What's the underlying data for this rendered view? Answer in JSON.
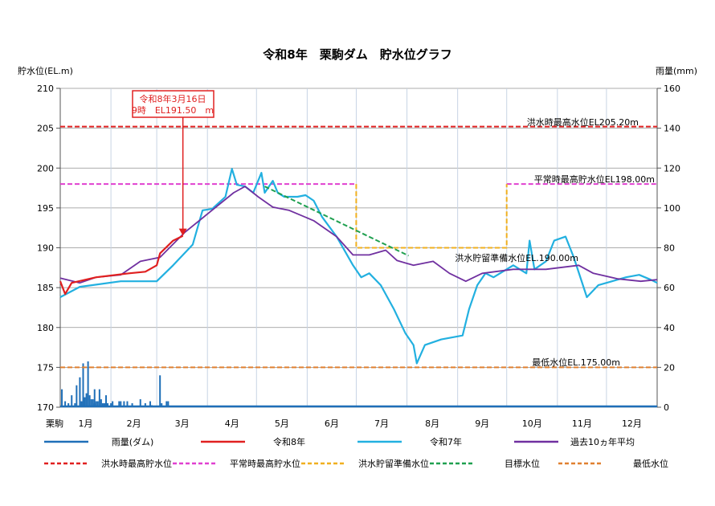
{
  "chart_data": {
    "type": "line",
    "title": "令和8年　栗駒ダム　貯水位グラフ",
    "ylabel": "貯水位(EL.m)",
    "y2label": "雨量(mm)",
    "xlabel_prefix": "栗駒",
    "ylim": [
      170,
      210
    ],
    "y2lim": [
      0,
      160
    ],
    "yticks": [
      170,
      175,
      180,
      185,
      190,
      195,
      200,
      205,
      210
    ],
    "y2ticks": [
      0,
      20,
      40,
      60,
      80,
      100,
      120,
      140,
      160
    ],
    "months": [
      "1月",
      "2月",
      "3月",
      "4月",
      "5月",
      "6月",
      "7月",
      "8月",
      "9月",
      "10月",
      "11月",
      "12月"
    ],
    "x_unit": "day of year",
    "grid": true,
    "colors": {
      "rain": "#1f6fb8",
      "r8": "#e02020",
      "r7": "#22b0e0",
      "avg": "#7030a0",
      "flood": "#e02020",
      "normal": "#e040d0",
      "prep": "#f0b020",
      "target": "#20a050",
      "min": "#e08030"
    },
    "series": [
      {
        "name": "令和8年",
        "key": "r8",
        "points": [
          [
            0,
            185.8
          ],
          [
            3,
            184.2
          ],
          [
            7,
            185.6
          ],
          [
            22,
            186.3
          ],
          [
            42,
            186.8
          ],
          [
            52,
            187
          ],
          [
            59,
            187.8
          ],
          [
            61,
            189.3
          ],
          [
            69,
            190.9
          ],
          [
            75,
            191.5
          ]
        ]
      },
      {
        "name": "令和7年",
        "key": "r7",
        "points": [
          [
            0,
            183.8
          ],
          [
            12,
            185.1
          ],
          [
            37,
            185.8
          ],
          [
            59,
            185.8
          ],
          [
            69,
            187.8
          ],
          [
            81,
            190.4
          ],
          [
            87,
            194.7
          ],
          [
            93,
            194.9
          ],
          [
            101,
            196.4
          ],
          [
            105,
            199.9
          ],
          [
            108,
            197.9
          ],
          [
            113,
            197.7
          ],
          [
            118,
            196.9
          ],
          [
            123,
            199.4
          ],
          [
            125,
            196.9
          ],
          [
            130,
            198.4
          ],
          [
            133,
            196.9
          ],
          [
            137,
            196.4
          ],
          [
            145,
            196.4
          ],
          [
            150,
            196.6
          ],
          [
            155,
            195.9
          ],
          [
            160,
            193.9
          ],
          [
            169,
            191.4
          ],
          [
            179,
            187.8
          ],
          [
            184,
            186.3
          ],
          [
            189,
            186.8
          ],
          [
            196,
            185.3
          ],
          [
            204,
            182.3
          ],
          [
            211,
            179.3
          ],
          [
            216,
            177.8
          ],
          [
            218,
            175.5
          ],
          [
            223,
            177.8
          ],
          [
            233,
            178.5
          ],
          [
            246,
            179
          ],
          [
            250,
            182.3
          ],
          [
            255,
            185.3
          ],
          [
            260,
            186.8
          ],
          [
            265,
            186.3
          ],
          [
            277,
            187.8
          ],
          [
            285,
            186.8
          ],
          [
            287,
            190.9
          ],
          [
            290,
            187.3
          ],
          [
            297,
            188.3
          ],
          [
            302,
            190.9
          ],
          [
            309,
            191.4
          ],
          [
            314,
            188.8
          ],
          [
            322,
            183.8
          ],
          [
            329,
            185.3
          ],
          [
            346,
            186.3
          ],
          [
            354,
            186.6
          ],
          [
            361,
            186
          ],
          [
            365,
            185.6
          ]
        ]
      },
      {
        "name": "過去10ヵ年平均",
        "key": "avg",
        "points": [
          [
            0,
            186.2
          ],
          [
            12,
            185.6
          ],
          [
            22,
            186.3
          ],
          [
            37,
            186.6
          ],
          [
            49,
            188.3
          ],
          [
            61,
            188.8
          ],
          [
            76,
            191.9
          ],
          [
            91,
            194.4
          ],
          [
            106,
            196.9
          ],
          [
            113,
            197.7
          ],
          [
            121,
            196.4
          ],
          [
            130,
            195.1
          ],
          [
            140,
            194.7
          ],
          [
            155,
            193.4
          ],
          [
            169,
            191.4
          ],
          [
            179,
            189.1
          ],
          [
            189,
            189.1
          ],
          [
            199,
            189.7
          ],
          [
            206,
            188.4
          ],
          [
            216,
            187.8
          ],
          [
            228,
            188.3
          ],
          [
            238,
            186.8
          ],
          [
            248,
            185.8
          ],
          [
            258,
            186.8
          ],
          [
            277,
            187.3
          ],
          [
            297,
            187.3
          ],
          [
            317,
            187.8
          ],
          [
            326,
            186.8
          ],
          [
            341,
            186.1
          ],
          [
            355,
            185.8
          ],
          [
            365,
            186
          ]
        ]
      },
      {
        "name": "目標水位",
        "key": "target",
        "dashed": true,
        "points": [
          [
            125,
            197.7
          ],
          [
            213,
            189
          ]
        ]
      },
      {
        "name": "洪水時最高貯水位",
        "key": "flood",
        "dashed": true,
        "points": [
          [
            0,
            205.2
          ],
          [
            365,
            205.2
          ]
        ]
      },
      {
        "name": "平常時最高貯水位",
        "key": "normal",
        "dashed": true,
        "segments": [
          [
            [
              0,
              198
            ],
            [
              181,
              198
            ]
          ],
          [
            [
              273,
              198
            ],
            [
              365,
              198
            ]
          ]
        ]
      },
      {
        "name": "洪水貯留準備水位",
        "key": "prep",
        "dashed": true,
        "points": [
          [
            181,
            198
          ],
          [
            181,
            190
          ],
          [
            273,
            190
          ],
          [
            273,
            198
          ]
        ]
      },
      {
        "name": "最低水位",
        "key": "min",
        "dashed": true,
        "points": [
          [
            0,
            175
          ],
          [
            365,
            175
          ]
        ]
      }
    ],
    "rainfall": {
      "name": "雨量(ダム)",
      "points": [
        [
          1,
          9
        ],
        [
          3,
          3
        ],
        [
          5,
          2
        ],
        [
          7,
          6
        ],
        [
          9,
          2
        ],
        [
          10,
          11
        ],
        [
          12,
          15
        ],
        [
          13,
          3
        ],
        [
          14,
          22
        ],
        [
          15,
          5
        ],
        [
          16,
          7
        ],
        [
          17,
          23
        ],
        [
          18,
          6
        ],
        [
          19,
          4
        ],
        [
          20,
          4
        ],
        [
          21,
          2
        ],
        [
          21,
          9
        ],
        [
          22,
          3
        ],
        [
          23,
          3
        ],
        [
          24,
          9
        ],
        [
          25,
          4
        ],
        [
          26,
          2
        ],
        [
          27,
          2
        ],
        [
          28,
          6
        ],
        [
          29,
          2
        ],
        [
          31,
          2
        ],
        [
          32,
          3
        ],
        [
          36,
          3
        ],
        [
          37,
          3
        ],
        [
          39,
          3
        ],
        [
          41,
          3
        ],
        [
          44,
          2
        ],
        [
          49,
          4
        ],
        [
          52,
          2
        ],
        [
          55,
          3
        ],
        [
          56,
          1
        ],
        [
          61,
          16
        ],
        [
          62,
          2
        ],
        [
          65,
          3
        ],
        [
          66,
          3
        ]
      ]
    },
    "annotations": {
      "current_line1": "令和8年3月16日",
      "current_line2": "9時　EL191.50　m",
      "current_day": 75,
      "current_value": 191.5,
      "flood_label": "洪水時最高水位EL205.20m",
      "normal_label": "平常時最高貯水位EL198.00m",
      "prep_label": "洪水貯留準備水位EL.190.00m",
      "min_label": "最低水位EL.175.00m"
    },
    "legend": [
      {
        "label": "雨量(ダム)",
        "key": "rain",
        "dashed": false
      },
      {
        "label": "令和8年",
        "key": "r8",
        "dashed": false
      },
      {
        "label": "令和7年",
        "key": "r7",
        "dashed": false
      },
      {
        "label": "過去10ヵ年平均",
        "key": "avg",
        "dashed": false
      },
      {
        "label": "洪水時最高貯水位",
        "key": "flood",
        "dashed": true
      },
      {
        "label": "平常時最高貯水位",
        "key": "normal",
        "dashed": true
      },
      {
        "label": "洪水貯留準備水位",
        "key": "prep",
        "dashed": true
      },
      {
        "label": "目標水位",
        "key": "target",
        "dashed": true
      },
      {
        "label": "最低水位",
        "key": "min",
        "dashed": true
      }
    ]
  }
}
